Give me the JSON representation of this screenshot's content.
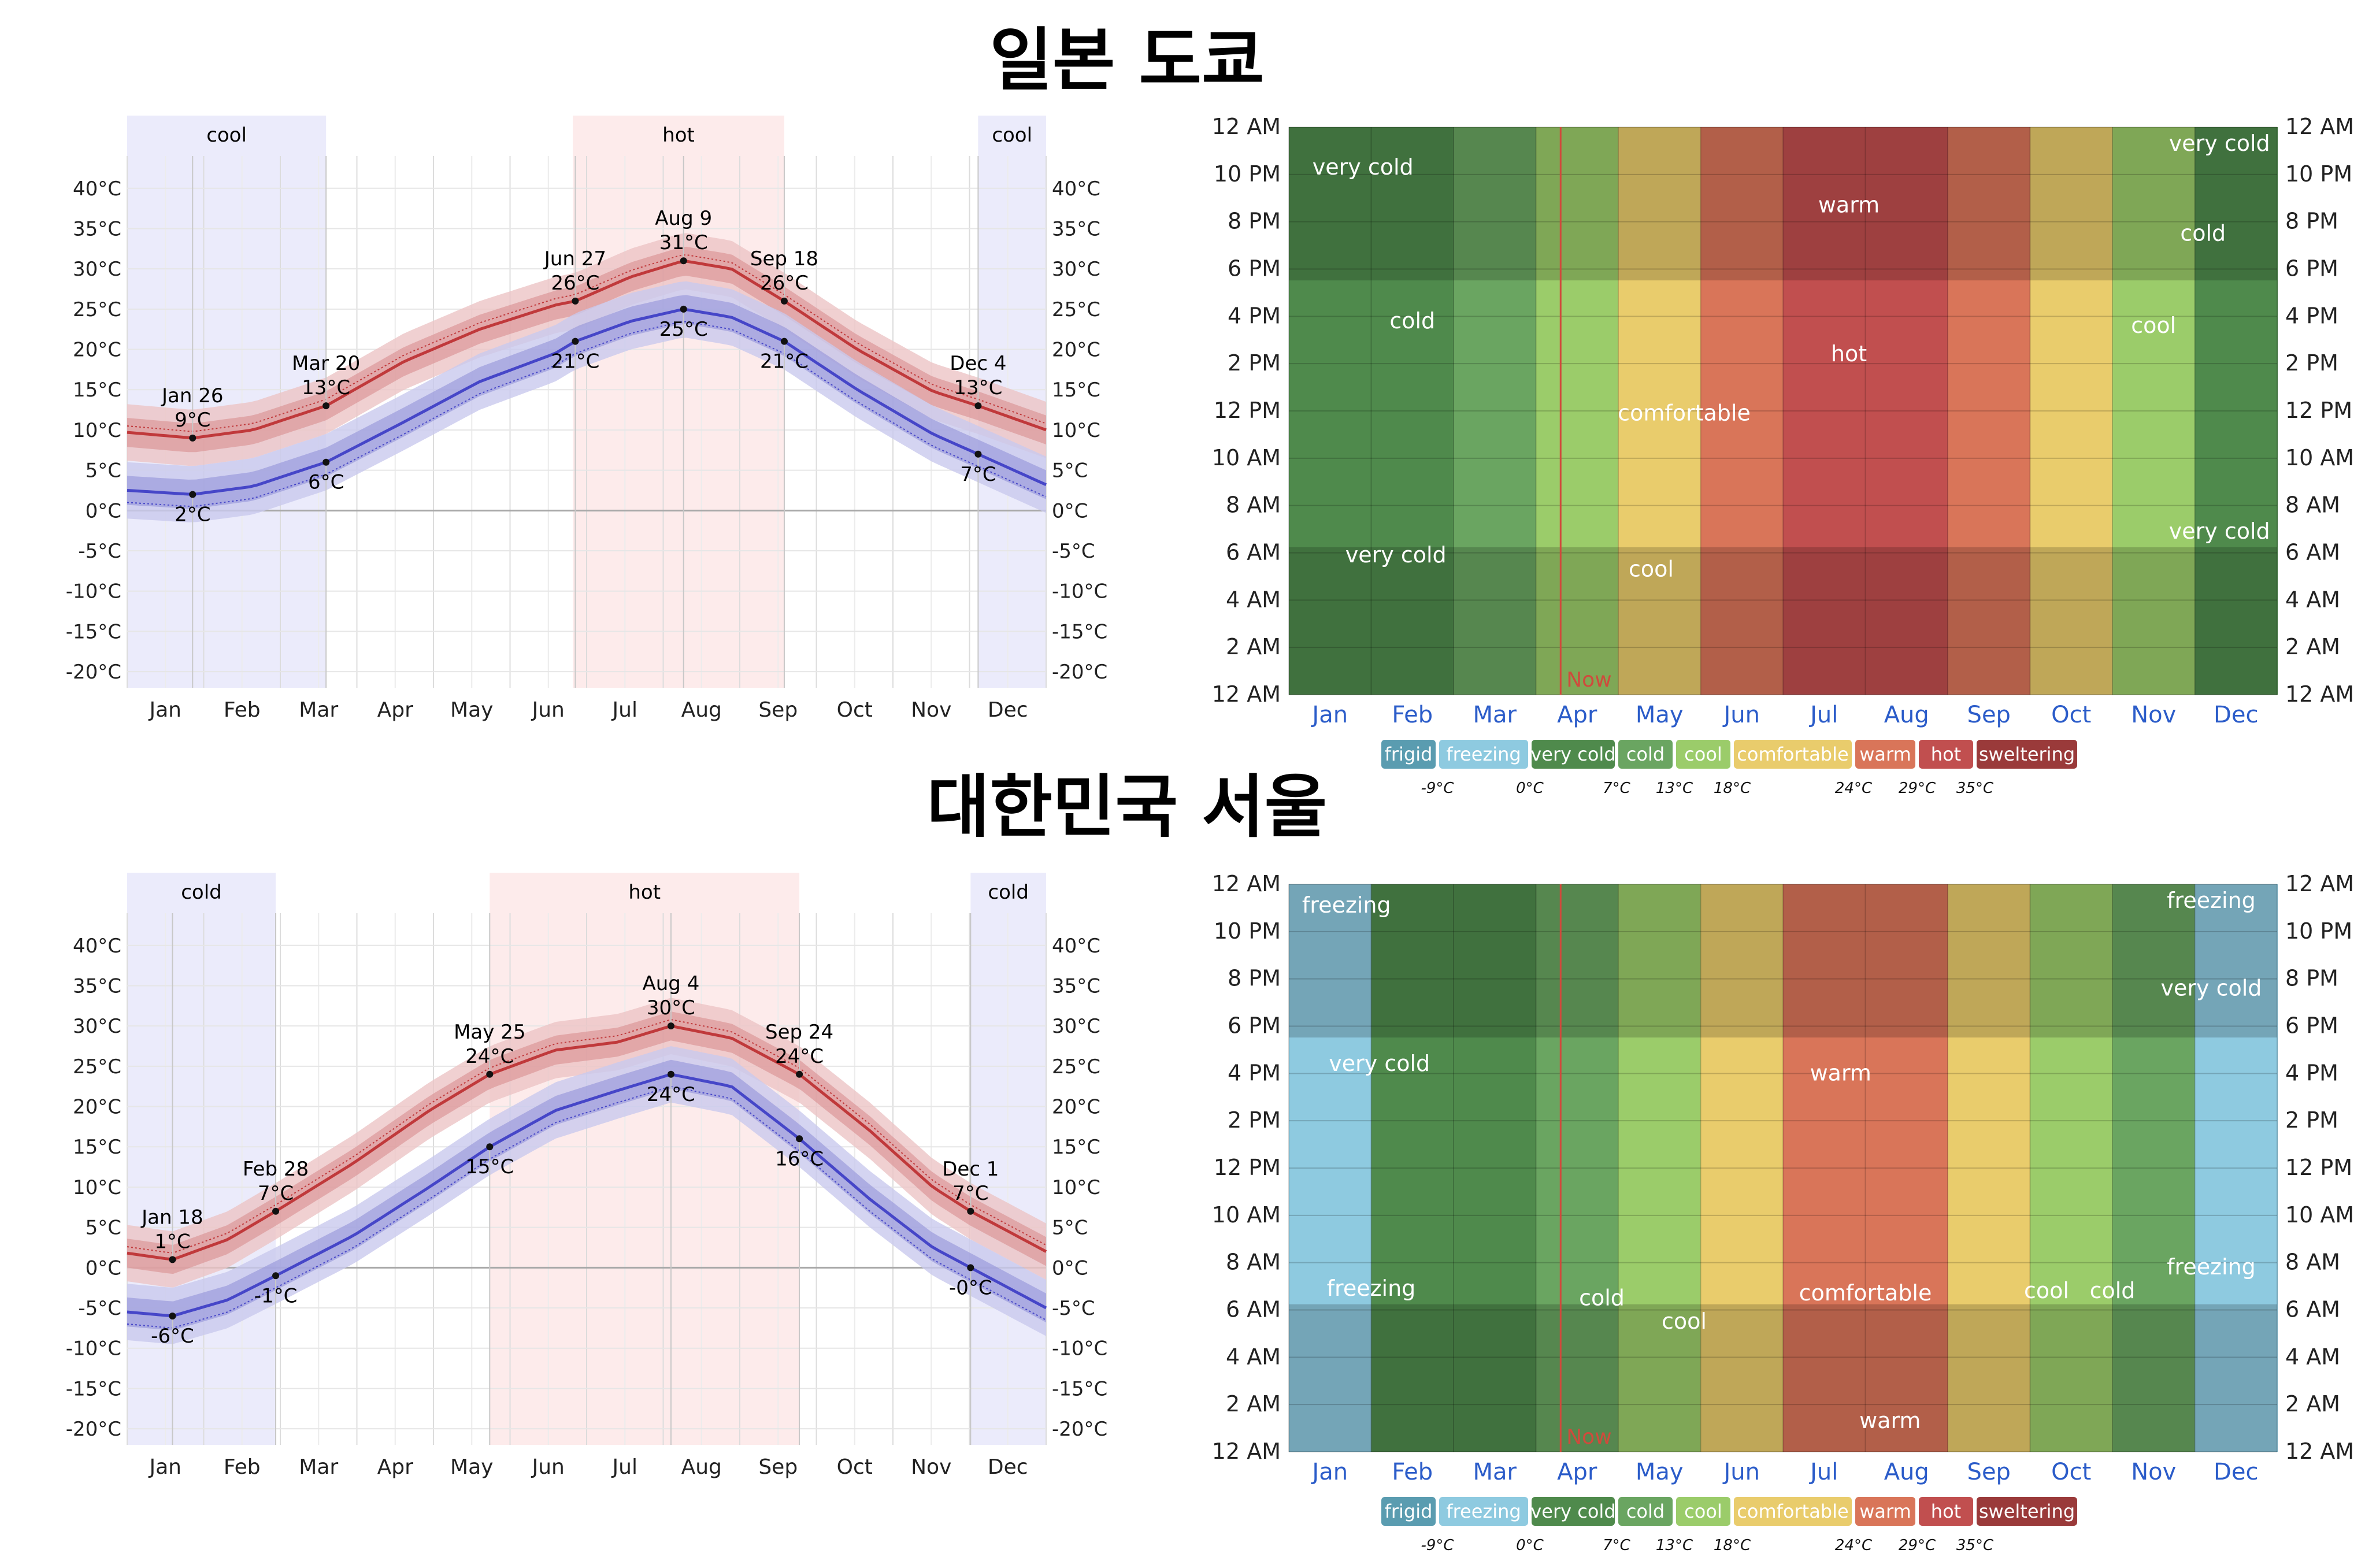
{
  "colors": {
    "tmax": "#c0393b",
    "tmin": "#4646c8",
    "band_max_inner": "#d98d8f",
    "band_max_outer": "#ecc4c5",
    "band_min_inner": "#9393d8",
    "band_min_outer": "#c9c9ee",
    "cool_season": "#ebebfb",
    "hot_season": "#fdebeb",
    "month_label": "#2b5cc9",
    "now_line": "#d04a3c"
  },
  "legend": {
    "items": [
      {
        "label": "frigid",
        "color": "#5a9cb0"
      },
      {
        "label": "freezing",
        "color": "#8ecae0"
      },
      {
        "label": "very cold",
        "color": "#4f8a4c"
      },
      {
        "label": "cold",
        "color": "#6aa561"
      },
      {
        "label": "cool",
        "color": "#9bcc6a"
      },
      {
        "label": "comfortable",
        "color": "#e9cc6c"
      },
      {
        "label": "warm",
        "color": "#d97559"
      },
      {
        "label": "hot",
        "color": "#c14f4f"
      },
      {
        "label": "sweltering",
        "color": "#9a3a3a"
      }
    ],
    "thresholds": [
      "-9°C",
      "0°C",
      "7°C",
      "13°C",
      "18°C",
      "24°C",
      "29°C",
      "35°C"
    ]
  },
  "cities": [
    {
      "title": "일본 도쿄",
      "chart_data": {
        "type": "line",
        "title": "일본 도쿄",
        "x": "day of year (0-365)",
        "xlabels": [
          "Jan",
          "Feb",
          "Mar",
          "Apr",
          "May",
          "Jun",
          "Jul",
          "Aug",
          "Sep",
          "Oct",
          "Nov",
          "Dec"
        ],
        "ylim": [
          -22,
          44
        ],
        "yticks": [
          -20,
          -15,
          -10,
          -5,
          0,
          5,
          10,
          15,
          20,
          25,
          30,
          35,
          40
        ],
        "seasons": [
          {
            "label": "cool",
            "start": 0,
            "end": 79
          },
          {
            "label": "hot",
            "start": 177,
            "end": 261
          },
          {
            "label": "cool",
            "start": 338,
            "end": 365
          }
        ],
        "series": [
          {
            "name": "avg high",
            "days": [
              0,
              26,
              50,
              79,
              110,
              140,
              170,
              178,
              200,
              221,
              240,
              261,
              290,
              320,
              338,
              365
            ],
            "values": [
              9.7,
              9.0,
              10.0,
              13.0,
              18.5,
              22.5,
              25.5,
              26.0,
              29.0,
              31.0,
              30.0,
              26.0,
              20.0,
              14.8,
              13.0,
              10.0
            ]
          },
          {
            "name": "avg low",
            "days": [
              0,
              26,
              50,
              79,
              110,
              140,
              170,
              178,
              200,
              221,
              240,
              261,
              290,
              320,
              338,
              365
            ],
            "values": [
              2.5,
              2.0,
              3.0,
              6.0,
              11.0,
              16.0,
              19.5,
              21.0,
              23.5,
              25.0,
              24.0,
              21.0,
              15.0,
              9.5,
              7.0,
              3.2
            ]
          }
        ],
        "annotations": [
          {
            "date": "Jan 26",
            "label": "9°C",
            "day": 26,
            "value": 9.0,
            "pos": "above"
          },
          {
            "date": "",
            "label": "2°C",
            "day": 26,
            "value": 2.0,
            "pos": "below"
          },
          {
            "date": "Mar 20",
            "label": "13°C",
            "day": 79,
            "value": 13.0,
            "pos": "above"
          },
          {
            "date": "",
            "label": "6°C",
            "day": 79,
            "value": 6.0,
            "pos": "below"
          },
          {
            "date": "Jun 27",
            "label": "26°C",
            "day": 178,
            "value": 26.0,
            "pos": "above"
          },
          {
            "date": "",
            "label": "21°C",
            "day": 178,
            "value": 21.0,
            "pos": "below"
          },
          {
            "date": "Aug 9",
            "label": "31°C",
            "day": 221,
            "value": 31.0,
            "pos": "above"
          },
          {
            "date": "",
            "label": "25°C",
            "day": 221,
            "value": 25.0,
            "pos": "below"
          },
          {
            "date": "Sep 18",
            "label": "26°C",
            "day": 261,
            "value": 26.0,
            "pos": "above"
          },
          {
            "date": "",
            "label": "21°C",
            "day": 261,
            "value": 21.0,
            "pos": "below"
          },
          {
            "date": "Dec 4",
            "label": "13°C",
            "day": 338,
            "value": 13.0,
            "pos": "above"
          },
          {
            "date": "",
            "label": "7°C",
            "day": 338,
            "value": 7.0,
            "pos": "below"
          }
        ]
      },
      "heatmap": {
        "type": "heatmap",
        "hour_labels": [
          "12 AM",
          "10 PM",
          "8 PM",
          "6 PM",
          "4 PM",
          "2 PM",
          "12 PM",
          "10 AM",
          "8 AM",
          "6 AM",
          "4 AM",
          "2 AM",
          "12 AM"
        ],
        "month_labels": [
          "Jan",
          "Feb",
          "Mar",
          "Apr",
          "May",
          "Jun",
          "Jul",
          "Aug",
          "Sep",
          "Oct",
          "Nov",
          "Dec"
        ],
        "now_label": "Now",
        "now_month": 3.3,
        "month_categories": [
          "very cold",
          "very cold",
          "cold",
          "cool",
          "comfortable",
          "warm",
          "hot",
          "hot",
          "warm",
          "comfortable",
          "cool",
          "very cold"
        ],
        "zone_labels": [
          {
            "text": "very cold",
            "month": 0.9,
            "hour": 22
          },
          {
            "text": "very cold",
            "month": 11.3,
            "hour": 23
          },
          {
            "text": "warm",
            "month": 6.8,
            "hour": 20.4
          },
          {
            "text": "cold",
            "month": 11.1,
            "hour": 19.2
          },
          {
            "text": "cold",
            "month": 1.5,
            "hour": 15.5
          },
          {
            "text": "hot",
            "month": 6.8,
            "hour": 14.1
          },
          {
            "text": "cool",
            "month": 10.5,
            "hour": 15.3
          },
          {
            "text": "comfortable",
            "month": 4.8,
            "hour": 11.6
          },
          {
            "text": "very cold",
            "month": 1.3,
            "hour": 5.6
          },
          {
            "text": "very cold",
            "month": 11.3,
            "hour": 6.6
          },
          {
            "text": "cool",
            "month": 4.4,
            "hour": 5.0
          }
        ]
      }
    },
    {
      "title": "대한민국 서울",
      "chart_data": {
        "type": "line",
        "title": "대한민국 서울",
        "x": "day of year (0-365)",
        "xlabels": [
          "Jan",
          "Feb",
          "Mar",
          "Apr",
          "May",
          "Jun",
          "Jul",
          "Aug",
          "Sep",
          "Oct",
          "Nov",
          "Dec"
        ],
        "ylim": [
          -22,
          44
        ],
        "yticks": [
          -20,
          -15,
          -10,
          -5,
          0,
          5,
          10,
          15,
          20,
          25,
          30,
          35,
          40
        ],
        "seasons": [
          {
            "label": "cold",
            "start": 0,
            "end": 59
          },
          {
            "label": "hot",
            "start": 144,
            "end": 267
          },
          {
            "label": "cold",
            "start": 335,
            "end": 365
          }
        ],
        "series": [
          {
            "name": "avg high",
            "days": [
              0,
              18,
              40,
              59,
              90,
              120,
              144,
              170,
              195,
              216,
              240,
              267,
              295,
              320,
              335,
              365
            ],
            "values": [
              1.8,
              1.0,
              3.5,
              7.0,
              13.0,
              19.5,
              24.0,
              27.0,
              28.0,
              30.0,
              28.5,
              24.0,
              17.0,
              10.0,
              7.0,
              2.0
            ]
          },
          {
            "name": "avg low",
            "days": [
              0,
              18,
              40,
              59,
              90,
              120,
              144,
              170,
              195,
              216,
              240,
              267,
              295,
              320,
              335,
              365
            ],
            "values": [
              -5.5,
              -6.0,
              -4.0,
              -1.0,
              4.0,
              10.0,
              15.0,
              19.5,
              22.0,
              24.0,
              22.5,
              16.0,
              8.5,
              2.5,
              -0.0,
              -5.0
            ]
          }
        ],
        "annotations": [
          {
            "date": "Jan 18",
            "label": "1°C",
            "day": 18,
            "value": 1.0,
            "pos": "above"
          },
          {
            "date": "",
            "label": "-6°C",
            "day": 18,
            "value": -6.0,
            "pos": "below"
          },
          {
            "date": "Feb 28",
            "label": "7°C",
            "day": 59,
            "value": 7.0,
            "pos": "above"
          },
          {
            "date": "",
            "label": "-1°C",
            "day": 59,
            "value": -1.0,
            "pos": "below"
          },
          {
            "date": "May 25",
            "label": "24°C",
            "day": 144,
            "value": 24.0,
            "pos": "above"
          },
          {
            "date": "",
            "label": "15°C",
            "day": 144,
            "value": 15.0,
            "pos": "below"
          },
          {
            "date": "Aug 4",
            "label": "30°C",
            "day": 216,
            "value": 30.0,
            "pos": "above"
          },
          {
            "date": "",
            "label": "24°C",
            "day": 216,
            "value": 24.0,
            "pos": "below"
          },
          {
            "date": "Sep 24",
            "label": "24°C",
            "day": 267,
            "value": 24.0,
            "pos": "above"
          },
          {
            "date": "",
            "label": "16°C",
            "day": 267,
            "value": 16.0,
            "pos": "below"
          },
          {
            "date": "Dec 1",
            "label": "7°C",
            "day": 335,
            "value": 7.0,
            "pos": "above"
          },
          {
            "date": "",
            "label": "-0°C",
            "day": 335,
            "value": -0.0,
            "pos": "below"
          }
        ]
      },
      "heatmap": {
        "type": "heatmap",
        "hour_labels": [
          "12 AM",
          "10 PM",
          "8 PM",
          "6 PM",
          "4 PM",
          "2 PM",
          "12 PM",
          "10 AM",
          "8 AM",
          "6 AM",
          "4 AM",
          "2 AM",
          "12 AM"
        ],
        "month_labels": [
          "Jan",
          "Feb",
          "Mar",
          "Apr",
          "May",
          "Jun",
          "Jul",
          "Aug",
          "Sep",
          "Oct",
          "Nov",
          "Dec"
        ],
        "now_label": "Now",
        "now_month": 3.3,
        "month_categories": [
          "freezing",
          "very cold",
          "very cold",
          "cold",
          "cool",
          "comfortable",
          "warm",
          "warm",
          "comfortable",
          "cool",
          "cold",
          "freezing"
        ],
        "zone_labels": [
          {
            "text": "freezing",
            "month": 0.7,
            "hour": 22.8
          },
          {
            "text": "freezing",
            "month": 11.2,
            "hour": 23.0
          },
          {
            "text": "very cold",
            "month": 11.2,
            "hour": 19.3
          },
          {
            "text": "very cold",
            "month": 1.1,
            "hour": 16.1
          },
          {
            "text": "warm",
            "month": 6.7,
            "hour": 15.7
          },
          {
            "text": "freezing",
            "month": 1.0,
            "hour": 6.6
          },
          {
            "text": "freezing",
            "month": 11.2,
            "hour": 7.5
          },
          {
            "text": "cold",
            "month": 3.8,
            "hour": 6.2
          },
          {
            "text": "cool",
            "month": 4.8,
            "hour": 5.2
          },
          {
            "text": "comfortable",
            "month": 7.0,
            "hour": 6.4
          },
          {
            "text": "cool",
            "month": 9.2,
            "hour": 6.5
          },
          {
            "text": "cold",
            "month": 10.0,
            "hour": 6.5
          },
          {
            "text": "warm",
            "month": 7.3,
            "hour": 1.0
          }
        ]
      }
    }
  ]
}
